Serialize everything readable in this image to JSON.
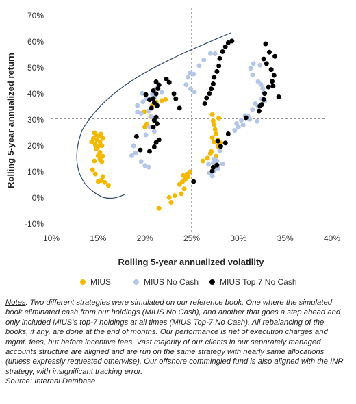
{
  "chart_data": {
    "type": "scatter",
    "xlabel": "Rolling 5-year annualized volatility",
    "ylabel": "Rolling 5-year annualized return",
    "xlim": [
      10,
      40
    ],
    "ylim": [
      -10,
      70
    ],
    "x_ticks": [
      "10%",
      "15%",
      "20%",
      "25%",
      "30%",
      "35%",
      "40%"
    ],
    "y_ticks": [
      "70%",
      "60%",
      "50%",
      "40%",
      "30%",
      "20%",
      "10%",
      "0%",
      "-10%"
    ],
    "reference_lines": {
      "vertical_x": 25,
      "horizontal_y": 30.5
    },
    "grid": false,
    "legend_position": "bottom",
    "series": [
      {
        "name": "MIUS",
        "color": "#F5B800",
        "points": [
          [
            14.6,
            25
          ],
          [
            14.8,
            24.2
          ],
          [
            15.1,
            23.8
          ],
          [
            15.3,
            24.5
          ],
          [
            14.5,
            22.8
          ],
          [
            14.9,
            22.2
          ],
          [
            15.2,
            21.5
          ],
          [
            15.5,
            22.9
          ],
          [
            14.3,
            21.5
          ],
          [
            14.7,
            20.5
          ],
          [
            15.0,
            19.8
          ],
          [
            15.4,
            20.1
          ],
          [
            14.8,
            18.8
          ],
          [
            15.2,
            17.5
          ],
          [
            15.0,
            16.2
          ],
          [
            15.5,
            16.0
          ],
          [
            15.2,
            14.8
          ],
          [
            15.4,
            13.9
          ],
          [
            14.6,
            14.2
          ],
          [
            14.4,
            10.8
          ],
          [
            14.7,
            9.2
          ],
          [
            15.5,
            8.2
          ],
          [
            15.3,
            6.7
          ],
          [
            15.7,
            6.0
          ],
          [
            16.1,
            4.8
          ],
          [
            15.0,
            6.3
          ],
          [
            21.5,
            -4.0
          ],
          [
            22.8,
            -1.7
          ],
          [
            22.6,
            0.2
          ],
          [
            23.2,
            0.9
          ],
          [
            23.9,
            1.6
          ],
          [
            24.2,
            3.5
          ],
          [
            23.7,
            5.2
          ],
          [
            24.0,
            6.2
          ],
          [
            24.3,
            7.0
          ],
          [
            24.6,
            8.0
          ],
          [
            24.1,
            8.6
          ],
          [
            24.5,
            9.1
          ],
          [
            24.8,
            10.0
          ],
          [
            26.2,
            14.2
          ],
          [
            26.7,
            15.3
          ],
          [
            27.0,
            17.0
          ],
          [
            27.1,
            17.8
          ],
          [
            27.6,
            16.0
          ],
          [
            27.8,
            19.8
          ],
          [
            27.4,
            21.5
          ],
          [
            27.2,
            23.2
          ],
          [
            27.6,
            24.6
          ],
          [
            27.5,
            26.3
          ],
          [
            27.4,
            28.2
          ],
          [
            27.3,
            29.6
          ],
          [
            27.9,
            30.7
          ],
          [
            27.2,
            32.0
          ],
          [
            19.9,
            33.1
          ],
          [
            20.2,
            28.4
          ],
          [
            20.0,
            27.2
          ],
          [
            20.6,
            31.2
          ],
          [
            21.2,
            36.8
          ],
          [
            21.8,
            37.4
          ],
          [
            22.2,
            37.8
          ],
          [
            20.8,
            35.5
          ],
          [
            27.8,
            22.3
          ],
          [
            28.1,
            21.1
          ],
          [
            28.0,
            20.3
          ]
        ]
      },
      {
        "name": "MIUS No Cash",
        "color": "#B4C7E7",
        "points": [
          [
            18.8,
            20.0
          ],
          [
            19.0,
            17.2
          ],
          [
            18.6,
            16.2
          ],
          [
            19.6,
            14.0
          ],
          [
            20.0,
            12.4
          ],
          [
            20.4,
            11.8
          ],
          [
            19.2,
            35.5
          ],
          [
            19.8,
            36.9
          ],
          [
            20.2,
            38.1
          ],
          [
            19.7,
            40.2
          ],
          [
            20.8,
            39.8
          ],
          [
            21.0,
            38.7
          ],
          [
            20.4,
            33.4
          ],
          [
            19.6,
            32.5
          ],
          [
            20.5,
            27.3
          ],
          [
            20.1,
            24.2
          ],
          [
            21.0,
            25.6
          ],
          [
            21.3,
            28.6
          ],
          [
            20.7,
            31.2
          ],
          [
            19.2,
            33.0
          ],
          [
            21.8,
            40.5
          ],
          [
            21.2,
            42.0
          ],
          [
            24.4,
            43.5
          ],
          [
            24.6,
            46.3
          ],
          [
            24.8,
            48.1
          ],
          [
            25.2,
            47.6
          ],
          [
            25.8,
            50.8
          ],
          [
            26.3,
            53.0
          ],
          [
            27.0,
            55.5
          ],
          [
            27.5,
            55.4
          ],
          [
            24.9,
            41.9
          ],
          [
            25.3,
            40.7
          ],
          [
            27.4,
            15.0
          ],
          [
            27.7,
            14.2
          ],
          [
            27.3,
            13.4
          ],
          [
            26.8,
            12.9
          ],
          [
            27.4,
            10.6
          ],
          [
            26.9,
            9.6
          ],
          [
            27.2,
            8.4
          ],
          [
            27.8,
            11.4
          ],
          [
            28.3,
            13.1
          ],
          [
            28.0,
            18.1
          ],
          [
            29.8,
            28.6
          ],
          [
            30.0,
            27.2
          ],
          [
            30.3,
            29.8
          ],
          [
            30.5,
            28.0
          ],
          [
            31.0,
            31.5
          ],
          [
            31.5,
            34.0
          ],
          [
            31.8,
            36.2
          ],
          [
            32.1,
            35.3
          ],
          [
            32.5,
            38.0
          ],
          [
            32.7,
            40.3
          ],
          [
            32.6,
            42.0
          ],
          [
            32.4,
            43.6
          ],
          [
            32.1,
            44.7
          ],
          [
            31.5,
            47.3
          ],
          [
            31.3,
            49.8
          ],
          [
            31.6,
            51.6
          ],
          [
            32.3,
            51.0
          ],
          [
            30.7,
            31.6
          ],
          [
            31.2,
            30.2
          ],
          [
            32.0,
            29.4
          ],
          [
            32.8,
            37.2
          ],
          [
            29.6,
            25.9
          ]
        ]
      },
      {
        "name": "MIUS Top 7 No Cash",
        "color": "#000000",
        "points": [
          [
            19.1,
            23.6
          ],
          [
            19.5,
            18.4
          ],
          [
            20.1,
            39.7
          ],
          [
            20.5,
            37.7
          ],
          [
            20.9,
            38.2
          ],
          [
            21.0,
            36.6
          ],
          [
            21.3,
            35.5
          ],
          [
            20.7,
            34.5
          ],
          [
            20.9,
            41.2
          ],
          [
            21.2,
            40.0
          ],
          [
            21.5,
            43.4
          ],
          [
            21.2,
            44.6
          ],
          [
            21.4,
            42.0
          ],
          [
            21.2,
            31.0
          ],
          [
            21.0,
            29.8
          ],
          [
            21.3,
            28.5
          ],
          [
            20.9,
            27.2
          ],
          [
            21.5,
            22.3
          ],
          [
            21.2,
            21.3
          ],
          [
            21.0,
            19.6
          ],
          [
            20.5,
            17.9
          ],
          [
            22.3,
            45.7
          ],
          [
            22.6,
            44.4
          ],
          [
            23.1,
            40.0
          ],
          [
            23.3,
            38.1
          ],
          [
            23.7,
            34.5
          ],
          [
            25.2,
            6.3
          ],
          [
            26.4,
            36.2
          ],
          [
            26.6,
            38.4
          ],
          [
            26.9,
            40.1
          ],
          [
            27.1,
            41.9
          ],
          [
            27.3,
            43.8
          ],
          [
            27.4,
            46.3
          ],
          [
            27.7,
            48.6
          ],
          [
            27.9,
            50.7
          ],
          [
            28.0,
            53.6
          ],
          [
            28.3,
            56.2
          ],
          [
            28.6,
            58.1
          ],
          [
            28.9,
            59.6
          ],
          [
            29.3,
            60.3
          ],
          [
            27.2,
            10.3
          ],
          [
            27.3,
            11.7
          ],
          [
            27.7,
            12.6
          ],
          [
            28.1,
            19.8
          ],
          [
            28.6,
            21.1
          ],
          [
            28.9,
            24.6
          ],
          [
            27.8,
            21.8
          ],
          [
            30.8,
            30.8
          ],
          [
            32.2,
            33.4
          ],
          [
            32.5,
            35.9
          ],
          [
            32.7,
            37.8
          ],
          [
            32.8,
            40.1
          ],
          [
            33.2,
            42.6
          ],
          [
            33.6,
            44.8
          ],
          [
            33.8,
            47.1
          ],
          [
            33.5,
            49.3
          ],
          [
            33.0,
            51.6
          ],
          [
            32.7,
            53.4
          ],
          [
            33.3,
            56.0
          ],
          [
            32.9,
            59.2
          ],
          [
            33.9,
            54.4
          ],
          [
            34.3,
            38.8
          ],
          [
            33.7,
            43.0
          ],
          [
            32.3,
            35.3
          ]
        ]
      }
    ]
  },
  "legend": [
    {
      "label": "MIUS",
      "color": "#F5B800"
    },
    {
      "label": "MIUS No Cash",
      "color": "#B4C7E7"
    },
    {
      "label": "MIUS Top 7 No Cash",
      "color": "#000000"
    }
  ],
  "notes": {
    "label": "Notes",
    "text": ": Two different strategies were simulated on our reference book.  One where the simulated book eliminated cash from our holdings (MIUS No Cash), and another that goes a step ahead and only included MIUS's top-7 holdings at all times (MIUS Top-7 No Cash).  All rebalancing of the books, if any, are done at the end of months.  Our performance is net of execution charges and mgmt. fees, but before incentive fees.  Vast majority of our clients in our separately managed accounts structure are aligned and are run on the same strategy with nearly same allocations (unless expressly requested otherwise). Our offshore commingled fund is also aligned with the INR strategy, with insignificant tracking error.",
    "source": "Source: Internal Database"
  }
}
